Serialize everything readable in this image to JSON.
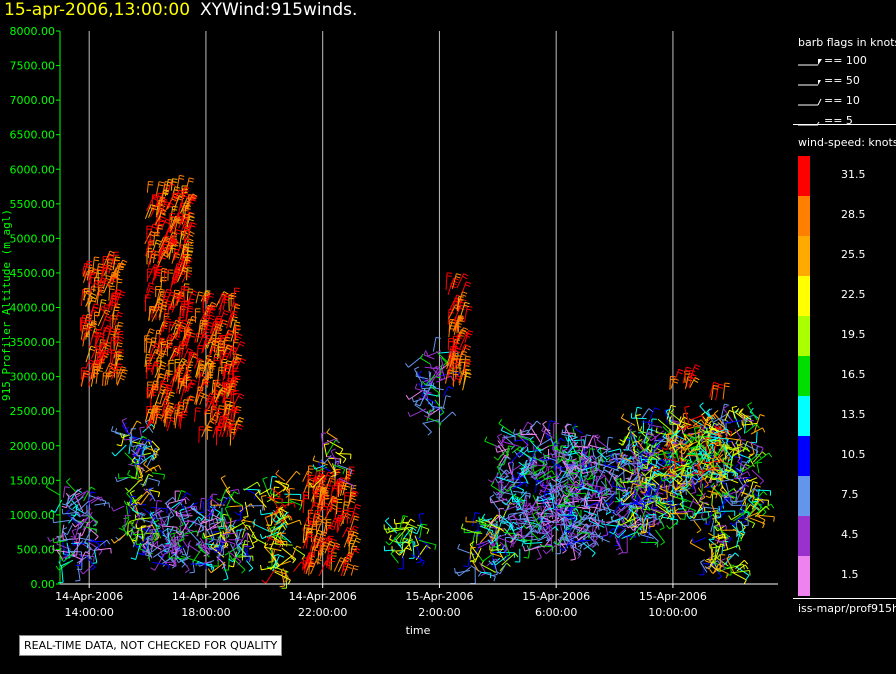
{
  "header": {
    "timestamp": "15-apr-2006,13:00:00",
    "product": "XYWind:915winds."
  },
  "chart_data": {
    "type": "scatter",
    "title": "XYWind:915winds.",
    "xlabel": "time",
    "ylabel": "915 Profiler Altitude (m agl)",
    "ylim": [
      0,
      8000
    ],
    "y_ticks": [
      "0.00",
      "500.00",
      "1000.00",
      "1500.00",
      "2000.00",
      "2500.00",
      "3000.00",
      "3500.00",
      "4000.00",
      "4500.00",
      "5000.00",
      "5500.00",
      "6000.00",
      "6500.00",
      "7000.00",
      "7500.00",
      "8000.00"
    ],
    "x_ticks": [
      {
        "date": "14-Apr-2006",
        "time": "14:00:00"
      },
      {
        "date": "14-Apr-2006",
        "time": "18:00:00"
      },
      {
        "date": "14-Apr-2006",
        "time": "22:00:00"
      },
      {
        "date": "15-Apr-2006",
        "time": "2:00:00"
      },
      {
        "date": "15-Apr-2006",
        "time": "6:00:00"
      },
      {
        "date": "15-Apr-2006",
        "time": "10:00:00"
      }
    ],
    "xlim_hours": [
      13,
      27.5
    ],
    "grid": "vertical",
    "clusters": [
      {
        "time_start": 13.0,
        "time_end": 14.2,
        "alt_min": 250,
        "alt_max": 1400,
        "speed": "mixed-low"
      },
      {
        "time_start": 13.7,
        "time_end": 15.0,
        "alt_min": 2800,
        "alt_max": 4600,
        "speed": "high"
      },
      {
        "time_start": 15.2,
        "time_end": 16.2,
        "alt_min": 500,
        "alt_max": 2200,
        "speed": "mixed-mid"
      },
      {
        "time_start": 15.9,
        "time_end": 17.4,
        "alt_min": 2200,
        "alt_max": 5700,
        "speed": "high"
      },
      {
        "time_start": 16.0,
        "time_end": 18.6,
        "alt_min": 250,
        "alt_max": 1200,
        "speed": "mixed-low"
      },
      {
        "time_start": 17.6,
        "time_end": 19.0,
        "alt_min": 2000,
        "alt_max": 4100,
        "speed": "high"
      },
      {
        "time_start": 18.5,
        "time_end": 19.5,
        "alt_min": 300,
        "alt_max": 1400,
        "speed": "mixed-mid"
      },
      {
        "time_start": 20.0,
        "time_end": 21.0,
        "alt_min": 150,
        "alt_max": 1500,
        "speed": "mixed-high"
      },
      {
        "time_start": 21.3,
        "time_end": 23.0,
        "alt_min": 100,
        "alt_max": 1500,
        "speed": "high"
      },
      {
        "time_start": 22.0,
        "time_end": 22.6,
        "alt_min": 1500,
        "alt_max": 2100,
        "speed": "mixed-mid"
      },
      {
        "time_start": 24.4,
        "time_end": 25.4,
        "alt_min": 300,
        "alt_max": 900,
        "speed": "mid"
      },
      {
        "time_start": 25.4,
        "time_end": 26.2,
        "alt_min": 2300,
        "alt_max": 3400,
        "speed": "mixed-low"
      },
      {
        "time_start": 26.2,
        "time_end": 26.9,
        "alt_min": 2800,
        "alt_max": 4300,
        "speed": "high"
      },
      {
        "time_start": 27.0,
        "time_end": 28.3,
        "alt_min": 150,
        "alt_max": 1000,
        "speed": "mixed-mid"
      },
      {
        "time_start": 28.0,
        "time_end": 31.0,
        "alt_min": 500,
        "alt_max": 2200,
        "speed": "mixed-low"
      },
      {
        "time_start": 30.0,
        "time_end": 33.5,
        "alt_min": 600,
        "alt_max": 2000,
        "speed": "mixed-low"
      },
      {
        "time_start": 32.5,
        "time_end": 37.0,
        "alt_min": 900,
        "alt_max": 2400,
        "speed": "mixed-mid"
      },
      {
        "time_start": 33.8,
        "time_end": 35.8,
        "alt_min": 1500,
        "alt_max": 2400,
        "speed": "mixed-high"
      },
      {
        "time_start": 35.0,
        "time_end": 36.2,
        "alt_min": 150,
        "alt_max": 900,
        "speed": "mixed-mid"
      },
      {
        "time_start": 33.8,
        "time_end": 34.6,
        "alt_min": 2800,
        "alt_max": 3000,
        "speed": "high"
      },
      {
        "time_start": 35.2,
        "time_end": 35.8,
        "alt_min": 2650,
        "alt_max": 2750,
        "speed": "high"
      }
    ]
  },
  "legend": {
    "barb_title": "barb flags in knots",
    "barb_flags": [
      "== 100",
      "== 50",
      "== 10",
      "== 5"
    ],
    "speed_title": "wind-speed: knots",
    "speed_scale": [
      {
        "label": "31.5",
        "color": "#ff0000"
      },
      {
        "label": "28.5",
        "color": "#ff7f00"
      },
      {
        "label": "25.5",
        "color": "#ffaa00"
      },
      {
        "label": "22.5",
        "color": "#ffff00"
      },
      {
        "label": "19.5",
        "color": "#aaff00"
      },
      {
        "label": "16.5",
        "color": "#00dd00"
      },
      {
        "label": "13.5",
        "color": "#00ffff"
      },
      {
        "label": "10.5",
        "color": "#0000ff"
      },
      {
        "label": "7.5",
        "color": "#6495ed"
      },
      {
        "label": "4.5",
        "color": "#9932cc"
      },
      {
        "label": "1.5",
        "color": "#ee82ee"
      }
    ],
    "source": "iss-mapr/prof915h"
  },
  "footer": {
    "qc_note": "REAL-TIME DATA, NOT CHECKED FOR QUALITY"
  },
  "colors": {
    "axis": "#00ff00",
    "grid": "#bfbfbf",
    "title_timestamp": "#ffff00",
    "text": "#ffffff"
  }
}
